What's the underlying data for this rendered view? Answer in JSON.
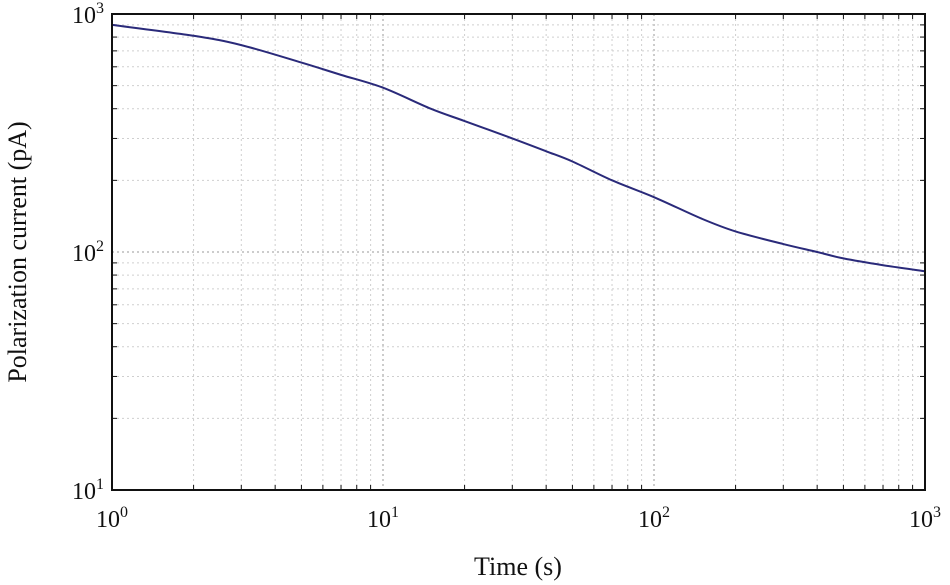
{
  "chart_data": {
    "type": "line",
    "xscale": "log",
    "yscale": "log",
    "xlim": [
      1,
      1000
    ],
    "ylim": [
      10,
      1000
    ],
    "grid": true,
    "xlabel": "Time (s)",
    "ylabel": "Polarization current (pA)",
    "x_ticks": [
      {
        "base": "10",
        "exp": "0"
      },
      {
        "base": "10",
        "exp": "1"
      },
      {
        "base": "10",
        "exp": "2"
      },
      {
        "base": "10",
        "exp": "3"
      }
    ],
    "y_ticks": [
      {
        "base": "10",
        "exp": "1"
      },
      {
        "base": "10",
        "exp": "2"
      },
      {
        "base": "10",
        "exp": "3"
      }
    ],
    "series": [
      {
        "color": "#2a2a7a",
        "x": [
          1,
          2,
          3,
          5,
          7,
          10,
          15,
          20,
          30,
          40,
          50,
          70,
          100,
          150,
          200,
          300,
          400,
          500,
          700,
          1000
        ],
        "y": [
          900,
          810,
          740,
          625,
          555,
          490,
          400,
          355,
          300,
          265,
          240,
          200,
          170,
          138,
          122,
          108,
          100,
          94,
          88,
          83
        ]
      }
    ]
  }
}
